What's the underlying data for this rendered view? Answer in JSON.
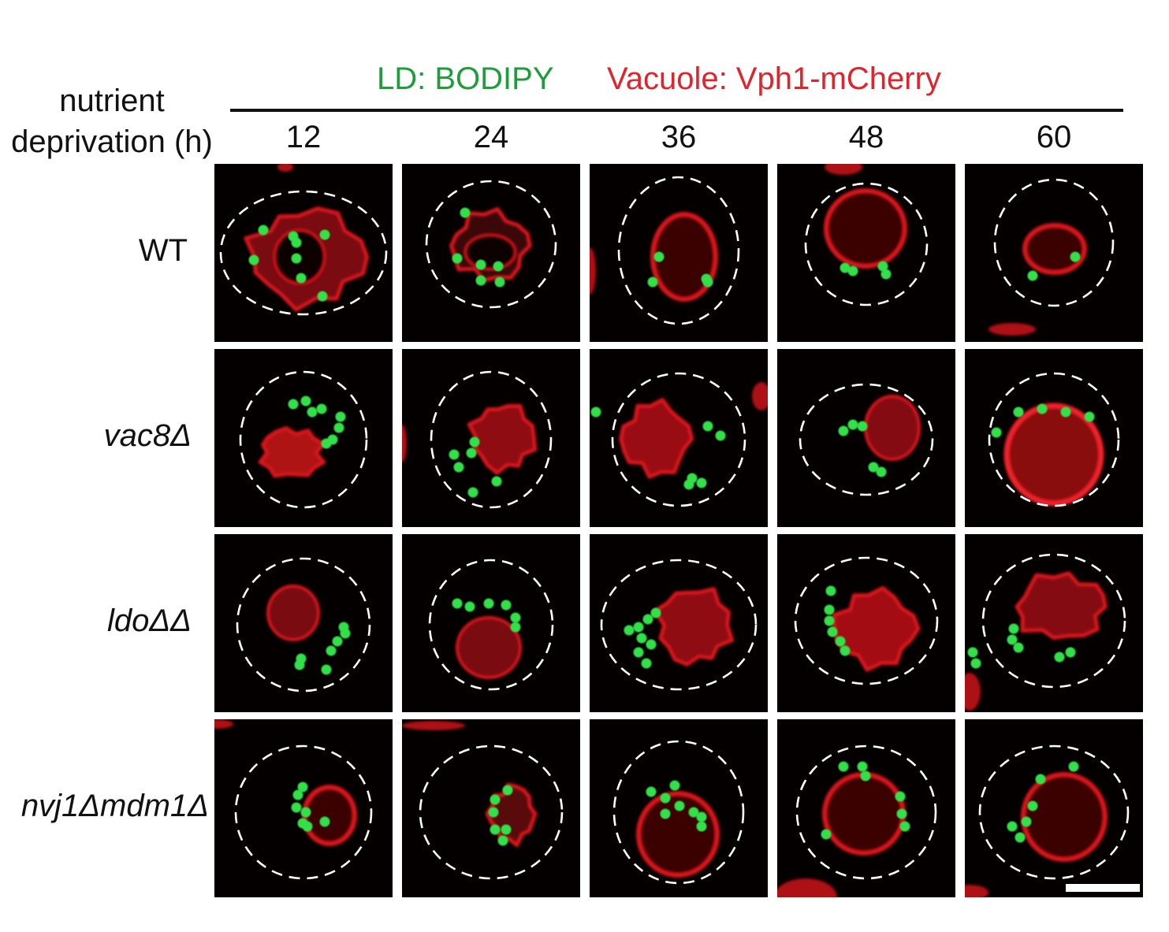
{
  "legend": {
    "ld": {
      "text": "LD: BODIPY",
      "color": "#1f9d3a"
    },
    "vacuole": {
      "text": "Vacuole: Vph1-mCherry",
      "color": "#e0242c"
    }
  },
  "axis_title": {
    "line1": "nutrient",
    "line2": "deprivation (h)"
  },
  "columns": [
    "12",
    "24",
    "36",
    "48",
    "60"
  ],
  "rows": [
    {
      "label": "WT",
      "italic": false
    },
    {
      "label": "vac8Δ",
      "italic": true
    },
    {
      "label": "ldoΔΔ",
      "italic": true
    },
    {
      "label": "nvj1Δmdm1Δ",
      "italic": true
    }
  ],
  "colors": {
    "panel_bg": "#050000",
    "vacuole_red": "#d8161c",
    "ld_green": "#32e04a",
    "cell_outline": "#ffffff"
  }
}
